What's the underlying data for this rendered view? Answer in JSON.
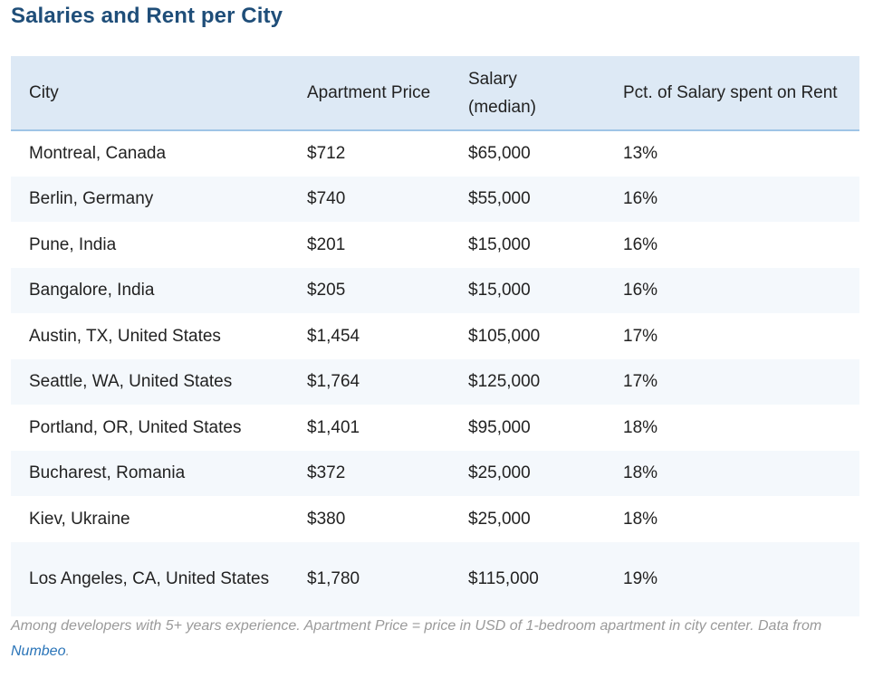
{
  "title": "Salaries and Rent per City",
  "table": {
    "headers": [
      "City",
      "Apartment Price",
      "Salary (median)",
      "Pct. of Salary spent on Rent"
    ],
    "rows": [
      {
        "city": "Montreal, Canada",
        "price": "$712",
        "salary": "$65,000",
        "pct": "13%"
      },
      {
        "city": "Berlin, Germany",
        "price": "$740",
        "salary": "$55,000",
        "pct": "16%"
      },
      {
        "city": "Pune, India",
        "price": "$201",
        "salary": "$15,000",
        "pct": "16%"
      },
      {
        "city": "Bangalore, India",
        "price": "$205",
        "salary": "$15,000",
        "pct": "16%"
      },
      {
        "city": "Austin, TX, United States",
        "price": "$1,454",
        "salary": "$105,000",
        "pct": "17%"
      },
      {
        "city": "Seattle, WA, United States",
        "price": "$1,764",
        "salary": "$125,000",
        "pct": "17%"
      },
      {
        "city": "Portland, OR, United States",
        "price": "$1,401",
        "salary": "$95,000",
        "pct": "18%"
      },
      {
        "city": "Bucharest, Romania",
        "price": "$372",
        "salary": "$25,000",
        "pct": "18%"
      },
      {
        "city": "Kiev, Ukraine",
        "price": "$380",
        "salary": "$25,000",
        "pct": "18%"
      },
      {
        "city": "Los Angeles, CA, United States",
        "price": "$1,780",
        "salary": "$115,000",
        "pct": "19%"
      }
    ]
  },
  "footnote": {
    "text": "Among developers with 5+ years experience. Apartment Price = price in USD of 1-bedroom apartment in city center. Data from ",
    "link_label": "Numbeo",
    "end": "."
  },
  "colors": {
    "title": "#1f4e79",
    "header_bg": "#dde9f5",
    "header_border": "#9fc4e6",
    "row_alt_bg": "#f4f8fc",
    "footnote": "#9a9a9a",
    "link": "#2a74b8"
  }
}
